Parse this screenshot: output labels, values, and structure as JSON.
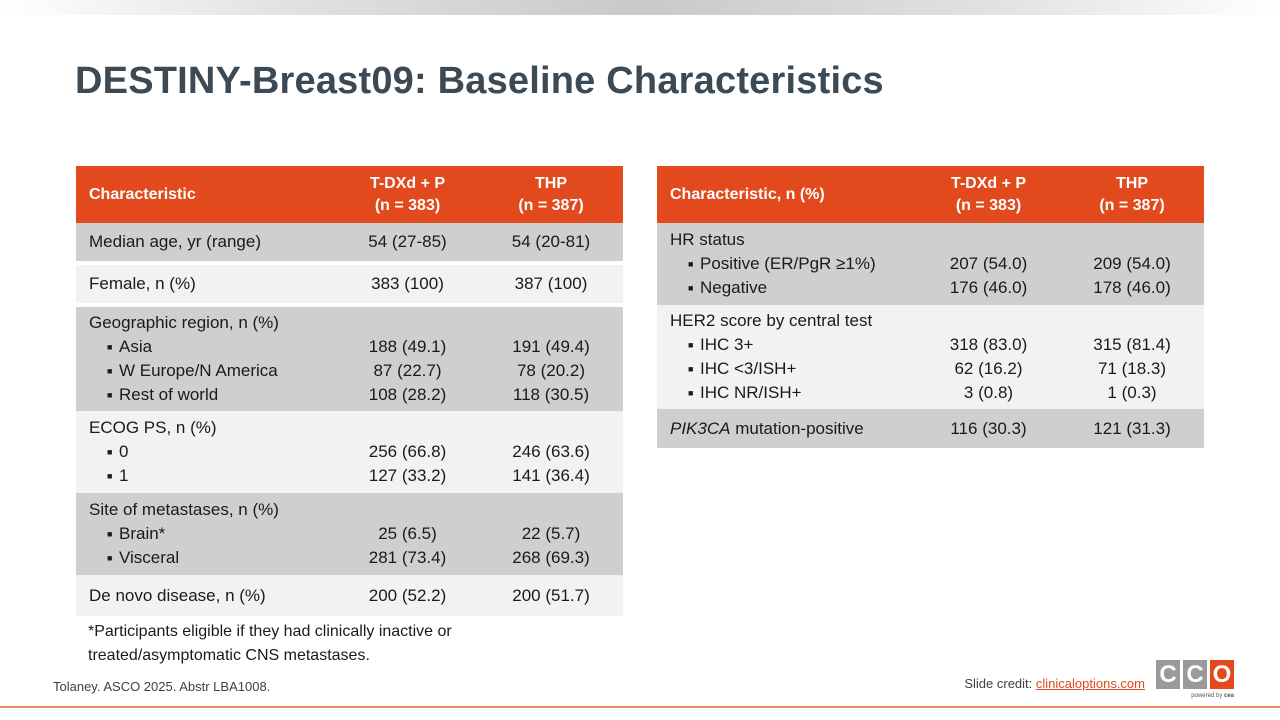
{
  "title": "DESTINY-Breast09: Baseline Characteristics",
  "left_table": {
    "headers": {
      "characteristic": "Characteristic",
      "col1": [
        "T-DXd + P",
        "(n = 383)"
      ],
      "col2": [
        "THP",
        "(n = 387)"
      ]
    },
    "groups": [
      {
        "label": "Median age, yr (range)",
        "col1": "54 (27-85)",
        "col2": "54 (20-81)",
        "items": []
      },
      {
        "label": "Female, n (%)",
        "col1": "383 (100)",
        "col2": "387 (100)",
        "items": []
      },
      {
        "label": "Geographic region, n (%)",
        "items": [
          {
            "label": "Asia",
            "col1": "188 (49.1)",
            "col2": "191 (49.4)"
          },
          {
            "label": "W Europe/N America",
            "col1": "87 (22.7)",
            "col2": "78 (20.2)"
          },
          {
            "label": "Rest of world",
            "col1": "108 (28.2)",
            "col2": "118 (30.5)"
          }
        ]
      },
      {
        "label": "ECOG PS, n (%)",
        "items": [
          {
            "label": "0",
            "col1": "256 (66.8)",
            "col2": "246 (63.6)"
          },
          {
            "label": "1",
            "col1": "127 (33.2)",
            "col2": "141 (36.4)"
          }
        ]
      },
      {
        "label": "Site of metastases, n (%)",
        "items": [
          {
            "label": "Brain*",
            "col1": "25 (6.5)",
            "col2": "22 (5.7)"
          },
          {
            "label": "Visceral",
            "col1": "281 (73.4)",
            "col2": "268 (69.3)"
          }
        ]
      },
      {
        "label": "De novo disease, n (%)",
        "col1": "200 (52.2)",
        "col2": "200 (51.7)",
        "items": []
      }
    ]
  },
  "right_table": {
    "headers": {
      "characteristic": "Characteristic, n (%)",
      "col1": [
        "T-DXd + P",
        "(n = 383)"
      ],
      "col2": [
        "THP",
        "(n = 387)"
      ]
    },
    "groups": [
      {
        "label": "HR status",
        "items": [
          {
            "label": "Positive (ER/PgR ≥1%)",
            "col1": "207 (54.0)",
            "col2": "209 (54.0)"
          },
          {
            "label": "Negative",
            "col1": "176 (46.0)",
            "col2": "178 (46.0)"
          }
        ]
      },
      {
        "label": "HER2 score by central test",
        "items": [
          {
            "label": "IHC 3+",
            "col1": "318 (83.0)",
            "col2": "315 (81.4)"
          },
          {
            "label": "IHC <3/ISH+",
            "col1": "62 (16.2)",
            "col2": "71 (18.3)"
          },
          {
            "label": "IHC NR/ISH+",
            "col1": "3 (0.8)",
            "col2": "1 (0.3)"
          }
        ]
      },
      {
        "label_italic": "PIK3CA",
        "label_rest": " mutation-positive",
        "col1": "116 (30.3)",
        "col2": "121 (31.3)",
        "items": []
      }
    ]
  },
  "bullet_glyph": "■",
  "footnote": "*Participants eligible if they had clinically inactive or treated/asymptomatic CNS metastases.",
  "citation": "Tolaney. ASCO 2025. Abstr LBA1008.",
  "credit": {
    "prefix": "Slide credit: ",
    "link": "clinicaloptions.com"
  },
  "logo": {
    "letters": [
      "C",
      "C",
      "O"
    ],
    "colors": [
      "#9a9a9a",
      "#9a9a9a",
      "#e2491d"
    ],
    "powered_prefix": "powered by ",
    "powered_brand": "cea"
  },
  "colors": {
    "header": "#e2491d",
    "shade": "#cfcfcf",
    "light": "#f2f2f2",
    "title": "#3c4a56"
  }
}
